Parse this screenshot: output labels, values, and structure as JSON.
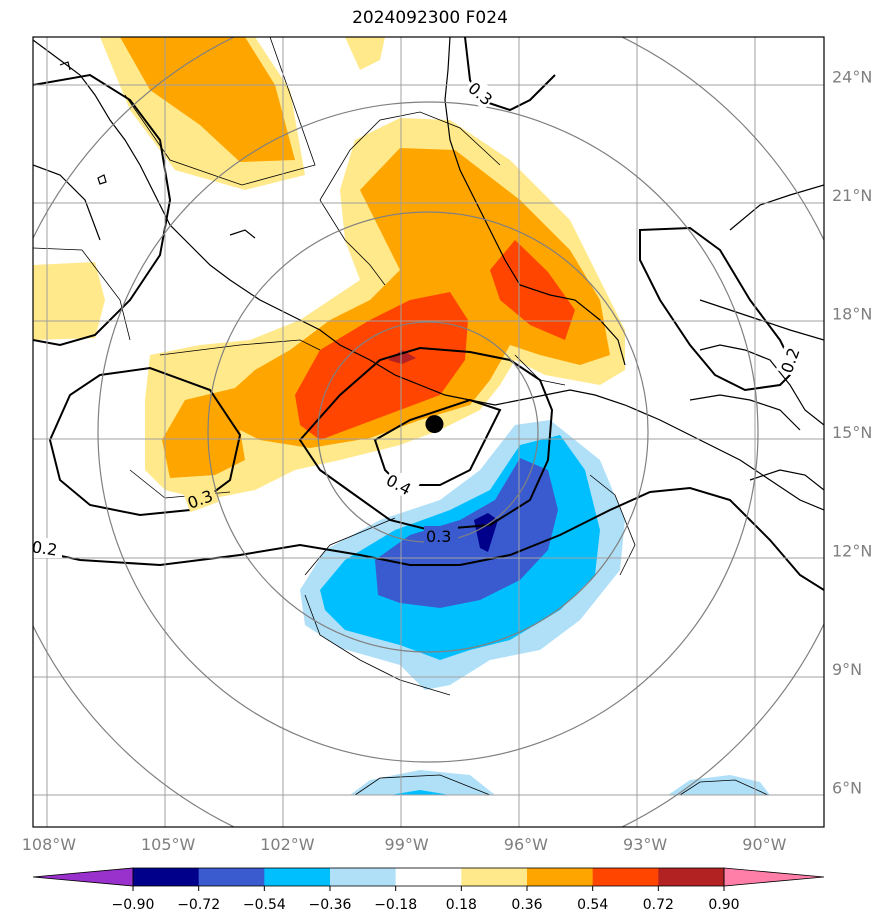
{
  "title": "2024092300 F024",
  "chart_data": {
    "type": "map-contour",
    "title": "2024092300 F024",
    "lat_ticks": [
      "24°N",
      "21°N",
      "18°N",
      "15°N",
      "12°N",
      "9°N",
      "6°N"
    ],
    "lat_values": [
      24,
      21,
      18,
      15,
      12,
      9,
      6
    ],
    "lon_ticks": [
      "108°W",
      "105°W",
      "102°W",
      "99°W",
      "96°W",
      "93°W",
      "90°W"
    ],
    "lon_values": [
      -108,
      -105,
      -102,
      -99,
      -96,
      -93,
      -90
    ],
    "lon_range": [
      -108.4,
      -88.5
    ],
    "lat_range": [
      5.0,
      25.0
    ],
    "center_marker": {
      "lon": -98.3,
      "lat": 15.2
    },
    "contour_labels": [
      "0.3",
      "0.2",
      "0.3",
      "0.4",
      "0.3",
      "0.2"
    ],
    "colorbar": {
      "ticks": [
        "−0.90",
        "−0.72",
        "−0.54",
        "−0.36",
        "−0.18",
        "0.18",
        "0.36",
        "0.54",
        "0.72",
        "0.90"
      ],
      "levels": [
        -0.9,
        -0.72,
        -0.54,
        -0.36,
        -0.18,
        0.18,
        0.36,
        0.54,
        0.72,
        0.9
      ],
      "colors": [
        "#9932cc",
        "#00008b",
        "#3a5bcf",
        "#00bfff",
        "#b0e0f8",
        "#ffffff",
        "#ffe98a",
        "#ffa500",
        "#ff4500",
        "#b22222",
        "#ff7fa8"
      ]
    }
  }
}
